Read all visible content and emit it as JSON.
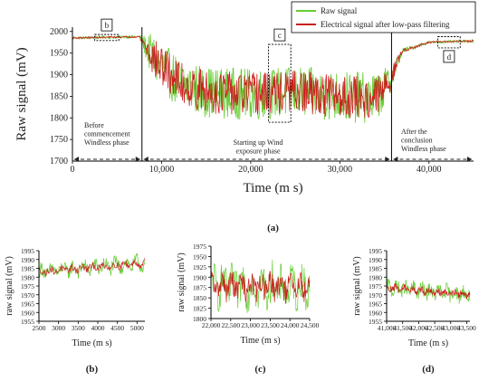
{
  "colors": {
    "raw": "#66cc33",
    "filtered": "#cc1f1f",
    "axis": "#000000",
    "dash": "#222222"
  },
  "chart_data": [
    {
      "id": "a",
      "type": "line",
      "panel_label": "(a)",
      "xlabel": "Time (m s)",
      "ylabel": "Raw signal (mV)",
      "xlim": [
        0,
        45000
      ],
      "ylim": [
        1700,
        2010
      ],
      "xticks": [
        0,
        10000,
        20000,
        30000,
        40000
      ],
      "xtick_labels": [
        "0",
        "10,000",
        "20,000",
        "30,000",
        "40,000"
      ],
      "yticks": [
        1750,
        1800,
        1850,
        1900,
        1950,
        2000
      ],
      "yaxis_label_1700": "1700",
      "legend": [
        "Raw signal",
        "Electrical signal after low-pass filtering"
      ],
      "legend_position": "top-right",
      "series": [
        {
          "name": "Raw signal",
          "color": "#66cc33",
          "x": [
            0,
            7500,
            9000,
            12000,
            15000,
            20000,
            25000,
            30000,
            34000,
            35500,
            37000,
            40000,
            45000
          ],
          "y": [
            1985,
            1988,
            1940,
            1880,
            1860,
            1855,
            1860,
            1850,
            1845,
            1880,
            1955,
            1975,
            1978
          ],
          "noise_mv": [
            3,
            3,
            55,
            60,
            60,
            60,
            60,
            60,
            60,
            40,
            6,
            3,
            3
          ]
        },
        {
          "name": "Electrical signal after low-pass filtering",
          "color": "#cc1f1f",
          "x": [
            0,
            7500,
            9000,
            12000,
            15000,
            20000,
            25000,
            30000,
            34000,
            35500,
            37000,
            40000,
            45000
          ],
          "y": [
            1985,
            1988,
            1940,
            1880,
            1860,
            1855,
            1860,
            1850,
            1845,
            1880,
            1955,
            1975,
            1978
          ],
          "noise_mv": [
            2,
            2,
            45,
            50,
            50,
            50,
            50,
            50,
            50,
            30,
            4,
            2,
            2
          ]
        }
      ],
      "phase_boundaries": [
        7800,
        35800
      ],
      "phases": [
        {
          "lines": [
            "Before",
            "commencement",
            "Windless phase"
          ]
        },
        {
          "lines": [
            "Starting up Wind",
            "exposure phase"
          ]
        },
        {
          "lines": [
            "After the",
            "conclusion",
            "Windless phase"
          ]
        }
      ],
      "zoom_boxes": [
        {
          "label": "b",
          "x0": 2500,
          "x1": 5200,
          "y0": 1979,
          "y1": 1993
        },
        {
          "label": "c",
          "x0": 22000,
          "x1": 24500,
          "y0": 1790,
          "y1": 1970
        },
        {
          "label": "d",
          "x0": 41000,
          "x1": 43500,
          "y0": 1962,
          "y1": 1988
        }
      ]
    },
    {
      "id": "b",
      "type": "line",
      "panel_label": "(b)",
      "xlabel": "Time (m s)",
      "ylabel": "raw signal (mV)",
      "xlim": [
        2500,
        5200
      ],
      "ylim": [
        1955,
        1995
      ],
      "xticks": [
        2500,
        3000,
        3500,
        4000,
        4500,
        5000
      ],
      "xtick_labels": [
        "2500",
        "3000",
        "3500",
        "4000",
        "4500",
        "5000"
      ],
      "yticks": [
        1955,
        1960,
        1965,
        1970,
        1975,
        1980,
        1985,
        1990,
        1995
      ],
      "series": [
        {
          "name": "",
          "color": "#66cc33",
          "x": [
            2500,
            5200
          ],
          "y": [
            1983,
            1988
          ],
          "noise_mv": [
            4,
            4
          ]
        },
        {
          "name": "",
          "color": "#cc1f1f",
          "x": [
            2500,
            5200
          ],
          "y": [
            1983,
            1988
          ],
          "noise_mv": [
            2,
            2
          ]
        }
      ]
    },
    {
      "id": "c",
      "type": "line",
      "panel_label": "(c)",
      "xlabel": "Time (m s)",
      "ylabel": "raw signal (mV)",
      "xlim": [
        22000,
        24500
      ],
      "ylim": [
        1800,
        1975
      ],
      "xticks": [
        22000,
        22500,
        23000,
        23500,
        24000,
        24500
      ],
      "xtick_labels": [
        "22,000",
        "22,500",
        "23,000",
        "23,500",
        "24,000",
        "24,500"
      ],
      "yticks": [
        1800,
        1825,
        1850,
        1875,
        1900,
        1925,
        1950,
        1975
      ],
      "series": [
        {
          "name": "",
          "color": "#66cc33",
          "x": [
            22000,
            24500
          ],
          "y": [
            1880,
            1875
          ],
          "noise_mv": [
            45,
            45
          ]
        },
        {
          "name": "",
          "color": "#cc1f1f",
          "x": [
            22000,
            24500
          ],
          "y": [
            1880,
            1875
          ],
          "noise_mv": [
            28,
            28
          ]
        }
      ]
    },
    {
      "id": "d",
      "type": "line",
      "panel_label": "(d)",
      "xlabel": "Time (m s)",
      "ylabel": "raw signal (mV)",
      "xlim": [
        41000,
        43600
      ],
      "ylim": [
        1955,
        1995
      ],
      "xticks": [
        41000,
        41500,
        42000,
        42500,
        43000,
        43500
      ],
      "xtick_labels": [
        "41,000",
        "41,500",
        "42,000",
        "42,500",
        "43,000",
        "43,500"
      ],
      "yticks": [
        1955,
        1960,
        1965,
        1970,
        1975,
        1980,
        1985,
        1990,
        1995
      ],
      "series": [
        {
          "name": "",
          "color": "#66cc33",
          "x": [
            41000,
            43600
          ],
          "y": [
            1974,
            1970
          ],
          "noise_mv": [
            4,
            4
          ]
        },
        {
          "name": "",
          "color": "#cc1f1f",
          "x": [
            41000,
            43600
          ],
          "y": [
            1974,
            1970
          ],
          "noise_mv": [
            2,
            2
          ]
        }
      ]
    }
  ]
}
